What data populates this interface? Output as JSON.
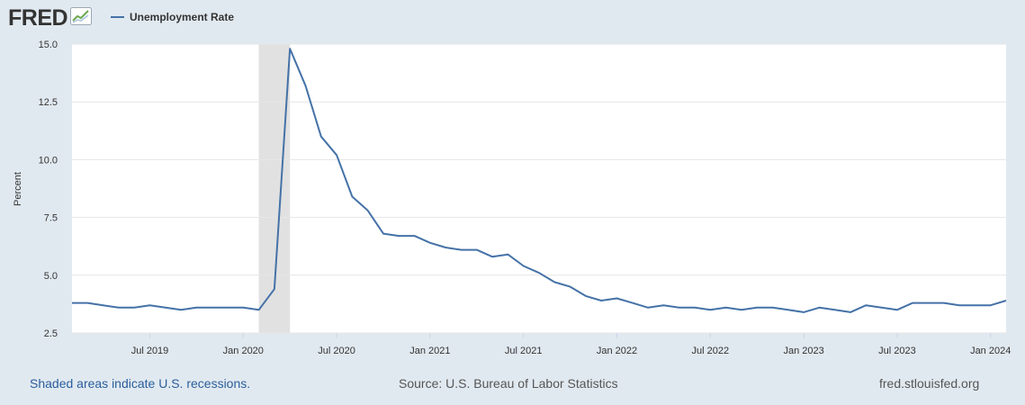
{
  "header": {
    "logo_text": "FRED",
    "logo_icon": "chart-line-icon"
  },
  "legend": {
    "label": "Unemployment Rate",
    "color": "#4572a7"
  },
  "chart_data": {
    "type": "line",
    "title": "",
    "ylabel": "Percent",
    "xlabel": "",
    "ylim": [
      2.5,
      15.0
    ],
    "yticks": [
      "2.5",
      "5.0",
      "7.5",
      "10.0",
      "12.5",
      "15.0"
    ],
    "xlim": [
      "2019-02",
      "2024-02"
    ],
    "xticks": [
      {
        "label": "Jul 2019",
        "date": "2019-07"
      },
      {
        "label": "Jan 2020",
        "date": "2020-01"
      },
      {
        "label": "Jul 2020",
        "date": "2020-07"
      },
      {
        "label": "Jan 2021",
        "date": "2021-01"
      },
      {
        "label": "Jul 2021",
        "date": "2021-07"
      },
      {
        "label": "Jan 2022",
        "date": "2022-01"
      },
      {
        "label": "Jul 2022",
        "date": "2022-07"
      },
      {
        "label": "Jan 2023",
        "date": "2023-01"
      },
      {
        "label": "Jul 2023",
        "date": "2023-07"
      },
      {
        "label": "Jan 2024",
        "date": "2024-01"
      }
    ],
    "grid": true,
    "legend_position": "top-left",
    "recession_shading": [
      {
        "start": "2020-02",
        "end": "2020-04",
        "color": "#e1e1e1"
      }
    ],
    "series": [
      {
        "name": "Unemployment Rate",
        "color": "#4572a7",
        "x": [
          "2019-02",
          "2019-03",
          "2019-04",
          "2019-05",
          "2019-06",
          "2019-07",
          "2019-08",
          "2019-09",
          "2019-10",
          "2019-11",
          "2019-12",
          "2020-01",
          "2020-02",
          "2020-03",
          "2020-04",
          "2020-05",
          "2020-06",
          "2020-07",
          "2020-08",
          "2020-09",
          "2020-10",
          "2020-11",
          "2020-12",
          "2021-01",
          "2021-02",
          "2021-03",
          "2021-04",
          "2021-05",
          "2021-06",
          "2021-07",
          "2021-08",
          "2021-09",
          "2021-10",
          "2021-11",
          "2021-12",
          "2022-01",
          "2022-02",
          "2022-03",
          "2022-04",
          "2022-05",
          "2022-06",
          "2022-07",
          "2022-08",
          "2022-09",
          "2022-10",
          "2022-11",
          "2022-12",
          "2023-01",
          "2023-02",
          "2023-03",
          "2023-04",
          "2023-05",
          "2023-06",
          "2023-07",
          "2023-08",
          "2023-09",
          "2023-10",
          "2023-11",
          "2023-12",
          "2024-01",
          "2024-02"
        ],
        "values": [
          3.8,
          3.8,
          3.7,
          3.6,
          3.6,
          3.7,
          3.6,
          3.5,
          3.6,
          3.6,
          3.6,
          3.6,
          3.5,
          4.4,
          14.8,
          13.2,
          11.0,
          10.2,
          8.4,
          7.8,
          6.8,
          6.7,
          6.7,
          6.4,
          6.2,
          6.1,
          6.1,
          5.8,
          5.9,
          5.4,
          5.1,
          4.7,
          4.5,
          4.1,
          3.9,
          4.0,
          3.8,
          3.6,
          3.7,
          3.6,
          3.6,
          3.5,
          3.6,
          3.5,
          3.6,
          3.6,
          3.5,
          3.4,
          3.6,
          3.5,
          3.4,
          3.7,
          3.6,
          3.5,
          3.8,
          3.8,
          3.8,
          3.7,
          3.7,
          3.7,
          3.9
        ]
      }
    ]
  },
  "footer": {
    "recession_note": "Shaded areas indicate U.S. recessions.",
    "source": "Source: U.S. Bureau of Labor Statistics",
    "site": "fred.stlouisfed.org"
  }
}
